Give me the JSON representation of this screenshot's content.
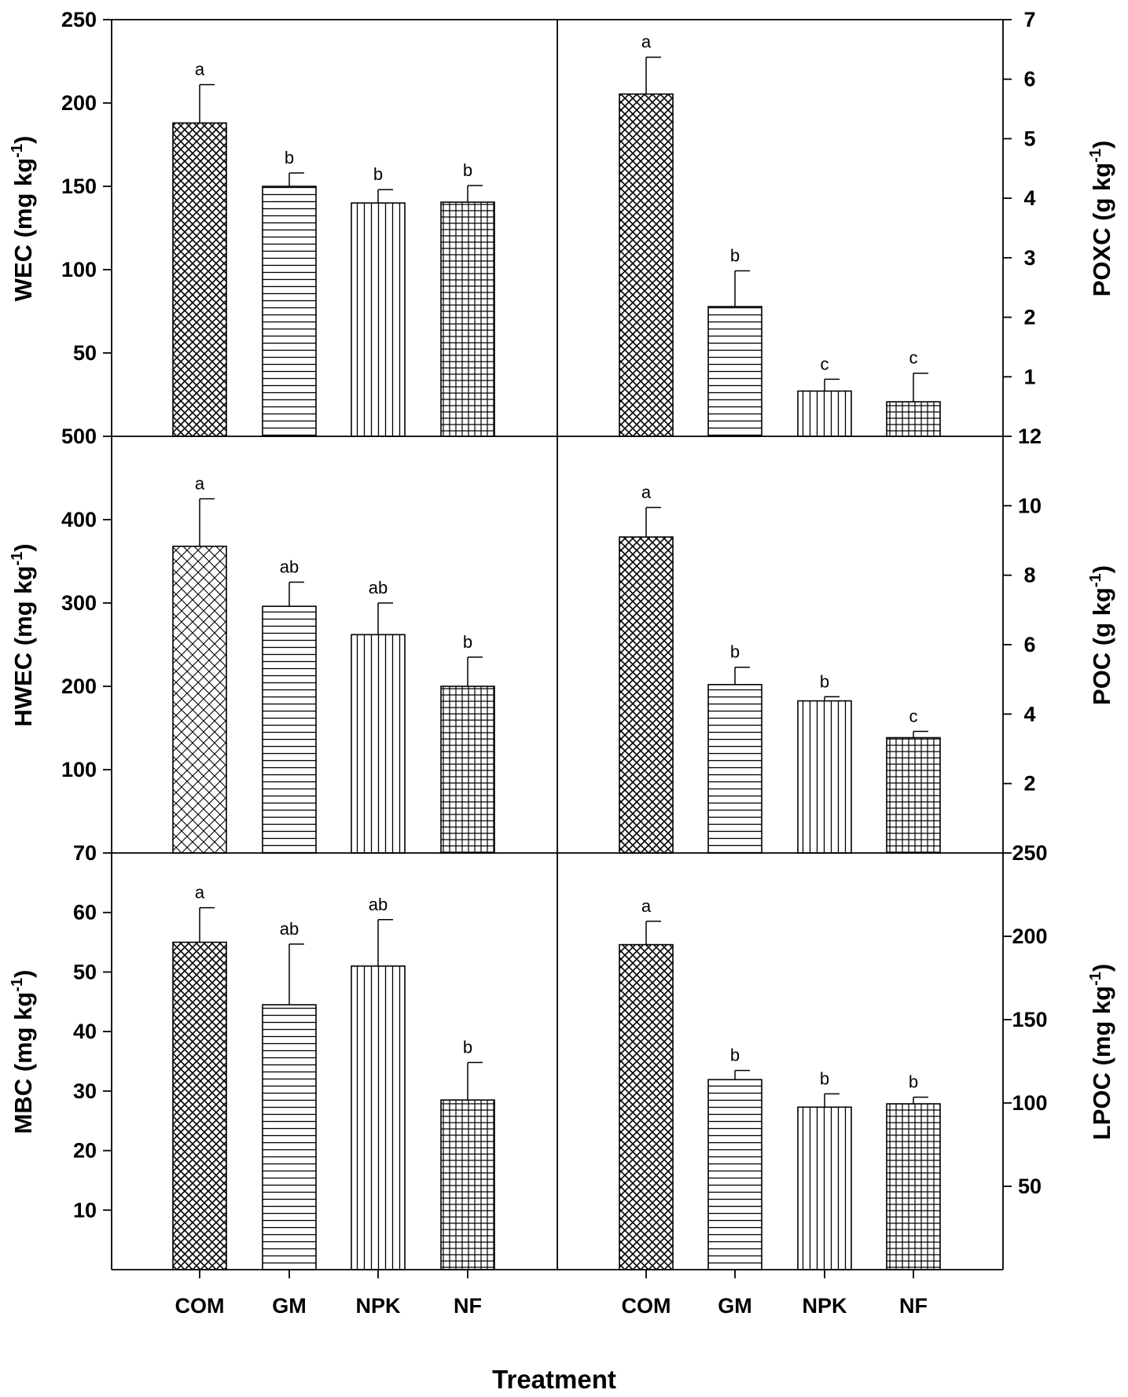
{
  "chart_data": {
    "type": "bar",
    "categories": [
      "COM",
      "GM",
      "NPK",
      "NF"
    ],
    "xlabel": "Treatment",
    "panels": [
      {
        "name": "WEC",
        "ylabel": "WEC (mg kg",
        "ylabel_sup": "-1",
        "ylabel_close": ")",
        "ylim": [
          0,
          250
        ],
        "ticks": [
          50,
          100,
          150,
          200,
          250
        ],
        "tick_labels": [
          "50",
          "100",
          "150",
          "200",
          "250"
        ],
        "values": [
          188,
          150,
          140,
          140.5
        ],
        "errors": [
          23,
          8,
          8,
          10
        ],
        "letters": [
          "a",
          "b",
          "b",
          "b"
        ]
      },
      {
        "name": "POXC",
        "ylabel": "POXC (g kg",
        "ylabel_sup": "-1",
        "ylabel_close": ")",
        "ylim": [
          0,
          7
        ],
        "ticks": [
          1,
          2,
          3,
          4,
          5,
          6,
          7
        ],
        "tick_labels": [
          "1",
          "2",
          "3",
          "4",
          "5",
          "6",
          "7"
        ],
        "values": [
          5.75,
          2.18,
          0.76,
          0.58
        ],
        "errors": [
          0.62,
          0.6,
          0.2,
          0.48
        ],
        "letters": [
          "a",
          "b",
          "c",
          "c"
        ]
      },
      {
        "name": "HWEC",
        "ylabel": "HWEC (mg kg",
        "ylabel_sup": "-1",
        "ylabel_close": ")",
        "ylim": [
          0,
          500
        ],
        "ticks": [
          100,
          200,
          300,
          400,
          500
        ],
        "tick_labels": [
          "100",
          "200",
          "300",
          "400",
          "500"
        ],
        "values": [
          368,
          296,
          262,
          200
        ],
        "errors": [
          57,
          29,
          38,
          35
        ],
        "letters": [
          "a",
          "ab",
          "ab",
          "b"
        ]
      },
      {
        "name": "POC",
        "ylabel": "POC (g kg",
        "ylabel_sup": "-1",
        "ylabel_close": ")",
        "ylim": [
          0,
          12
        ],
        "ticks": [
          2,
          4,
          6,
          8,
          10,
          12
        ],
        "tick_labels": [
          "2",
          "4",
          "6",
          "8",
          "10",
          "12"
        ],
        "values": [
          9.1,
          4.85,
          4.38,
          3.32
        ],
        "errors": [
          0.85,
          0.5,
          0.12,
          0.18
        ],
        "letters": [
          "a",
          "b",
          "b",
          "c"
        ]
      },
      {
        "name": "MBC",
        "ylabel": "MBC (mg kg",
        "ylabel_sup": "-1",
        "ylabel_close": ")",
        "ylim": [
          0,
          70
        ],
        "ticks": [
          10,
          20,
          30,
          40,
          50,
          60,
          70
        ],
        "tick_labels": [
          "10",
          "20",
          "30",
          "40",
          "50",
          "60",
          "70"
        ],
        "values": [
          55,
          44.5,
          51,
          28.5
        ],
        "errors": [
          5.8,
          10.2,
          7.8,
          6.3
        ],
        "letters": [
          "a",
          "ab",
          "ab",
          "b"
        ]
      },
      {
        "name": "LPOC",
        "ylabel": "LPOC (mg kg",
        "ylabel_sup": "-1",
        "ylabel_close": ")",
        "ylim": [
          0,
          250
        ],
        "ticks": [
          50,
          100,
          150,
          200,
          250
        ],
        "tick_labels": [
          "50",
          "100",
          "150",
          "200",
          "250"
        ],
        "values": [
          195,
          114,
          97.5,
          99.5
        ],
        "errors": [
          14,
          5.5,
          8,
          4
        ],
        "letters": [
          "a",
          "b",
          "b",
          "b"
        ]
      }
    ]
  }
}
